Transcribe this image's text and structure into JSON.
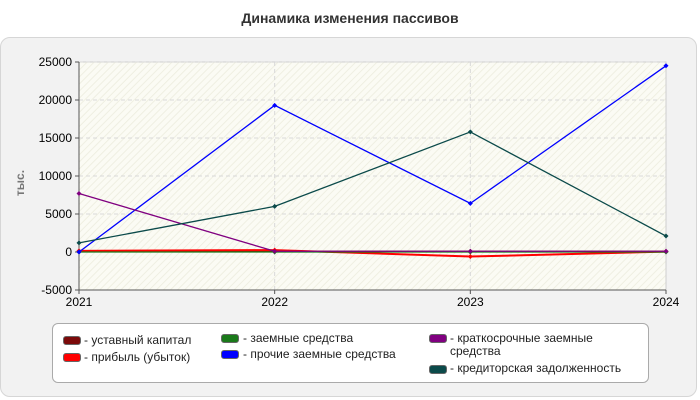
{
  "chart_data": {
    "type": "line",
    "title": "Динамика изменения пассивов",
    "ylabel": "тыс.",
    "x": [
      "2021",
      "2022",
      "2023",
      "2024"
    ],
    "ylim": [
      -5000,
      25000
    ],
    "yticks": [
      25000,
      20000,
      15000,
      10000,
      5000,
      0,
      -5000
    ],
    "grid": true,
    "legend_position": "bottom",
    "series": [
      {
        "name": "- уставный капитал",
        "color": "#7b0a0a",
        "values": [
          100,
          100,
          100,
          100
        ]
      },
      {
        "name": "- прибыль (убыток)",
        "color": "#ff0000",
        "values": [
          150,
          250,
          -600,
          50
        ]
      },
      {
        "name": "- заемные средства",
        "color": "#1a7a1a",
        "values": [
          0,
          0,
          0,
          0
        ]
      },
      {
        "name": "- прочие заемные средства",
        "color": "#0000ff",
        "values": [
          0,
          19300,
          6400,
          24500
        ]
      },
      {
        "name": "- краткосрочные заемные средства",
        "color": "#800080",
        "values": [
          7700,
          100,
          100,
          100
        ]
      },
      {
        "name": "- кредиторская задолженность",
        "color": "#0b4a4a",
        "values": [
          1200,
          6000,
          15800,
          2100
        ]
      }
    ]
  }
}
